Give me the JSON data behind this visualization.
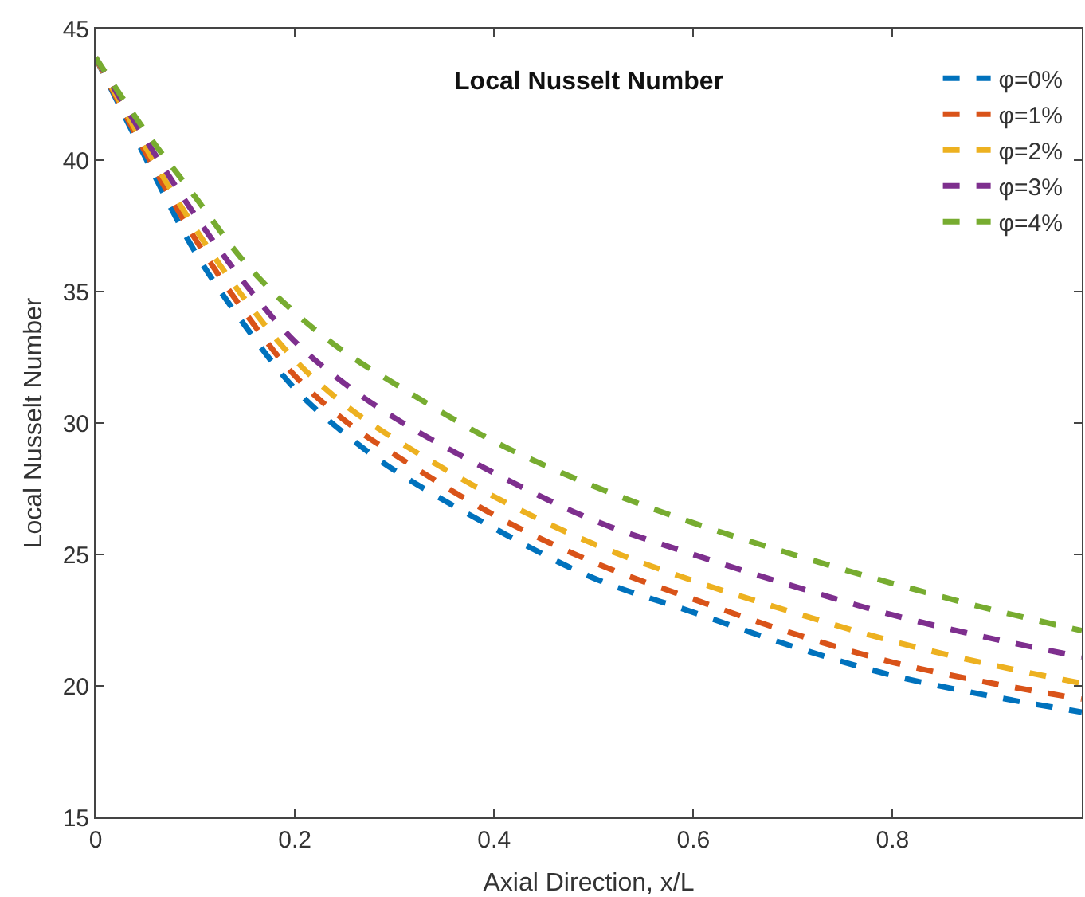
{
  "chart_data": {
    "type": "line",
    "title": "Local Nusselt Number",
    "xlabel": "Axial Direction, x/L",
    "ylabel": "Local Nusselt Number",
    "x": [
      0,
      0.05,
      0.1,
      0.15,
      0.2,
      0.25,
      0.3,
      0.4,
      0.5,
      0.6,
      0.7,
      0.8,
      0.9,
      0.99
    ],
    "series": [
      {
        "name": "φ=0%",
        "color": "#0072bd",
        "values": [
          43.9,
          40.1,
          36.5,
          33.7,
          31.3,
          29.6,
          28.2,
          26.0,
          24.1,
          22.8,
          21.5,
          20.4,
          19.6,
          19.0
        ]
      },
      {
        "name": "φ=1%",
        "color": "#d95319",
        "values": [
          43.9,
          40.3,
          37.0,
          34.2,
          31.8,
          30.1,
          28.8,
          26.5,
          24.7,
          23.3,
          22.0,
          20.9,
          20.1,
          19.5
        ]
      },
      {
        "name": "φ=2%",
        "color": "#edb120",
        "values": [
          43.9,
          40.5,
          37.4,
          34.7,
          32.4,
          30.7,
          29.4,
          27.2,
          25.4,
          24.0,
          22.8,
          21.7,
          20.8,
          20.1
        ]
      },
      {
        "name": "φ=3%",
        "color": "#7e2f8e",
        "values": [
          43.9,
          40.8,
          37.9,
          35.3,
          33.1,
          31.5,
          30.2,
          28.1,
          26.3,
          25.0,
          23.8,
          22.7,
          21.8,
          21.1
        ]
      },
      {
        "name": "φ=4%",
        "color": "#77ac30",
        "values": [
          43.9,
          41.1,
          38.6,
          36.1,
          34.2,
          32.7,
          31.5,
          29.3,
          27.6,
          26.2,
          25.0,
          23.9,
          22.9,
          22.1
        ]
      }
    ],
    "xlim": [
      0,
      0.99
    ],
    "xticks": [
      0,
      0.2,
      0.4,
      0.6,
      0.8
    ],
    "ylim": [
      15,
      45
    ],
    "yticks": [
      15,
      20,
      25,
      30,
      35,
      40,
      45
    ],
    "legend": "top right",
    "line_style": "dashed"
  }
}
